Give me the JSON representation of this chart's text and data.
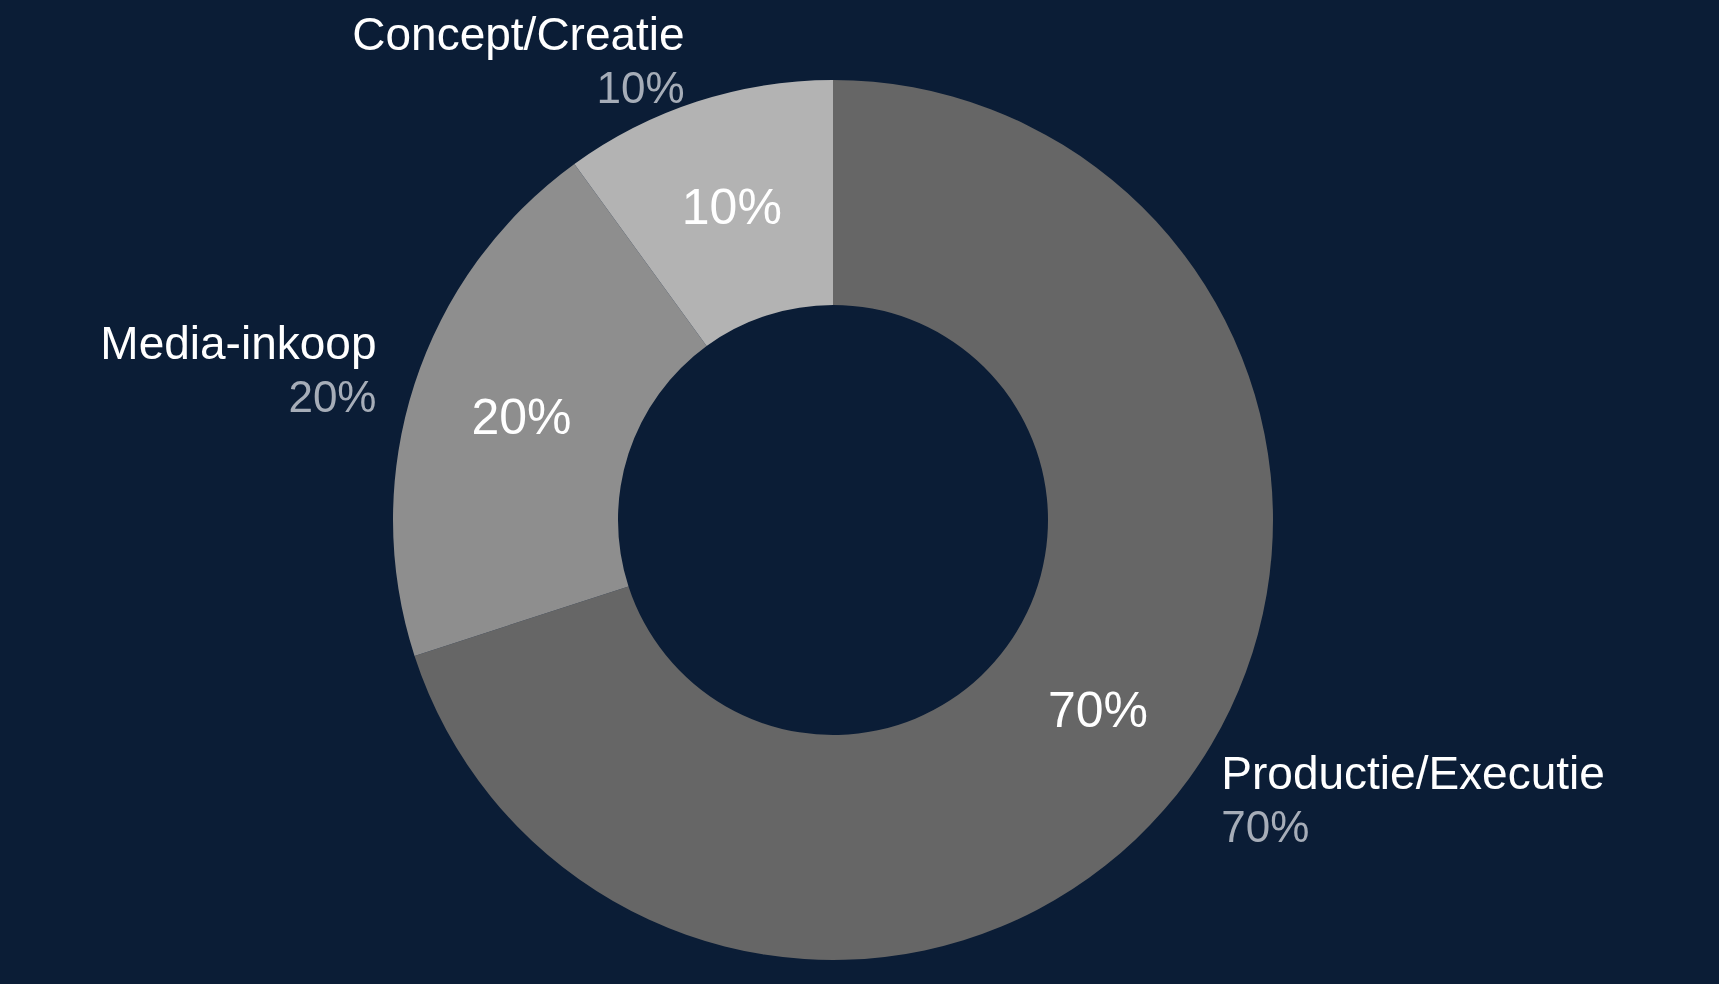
{
  "chart_data": {
    "type": "donut",
    "categories": [
      "Productie/Executie",
      "Media-inkoop",
      "Concept/Creatie"
    ],
    "values": [
      70,
      20,
      10
    ],
    "value_labels": [
      "70%",
      "20%",
      "10%"
    ],
    "colors": [
      "#666666",
      "#8e8e8e",
      "#b3b3b3"
    ]
  }
}
